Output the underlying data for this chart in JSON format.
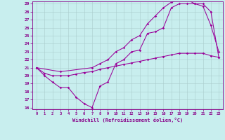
{
  "xlabel": "Windchill (Refroidissement éolien,°C)",
  "bg_color": "#c8eeee",
  "grid_color": "#aacccc",
  "line_color": "#990099",
  "xmin": 0,
  "xmax": 23,
  "ymin": 16,
  "ymax": 29,
  "line1_x": [
    0,
    1,
    2,
    3,
    4,
    5,
    6,
    7,
    8,
    9,
    10,
    11,
    12,
    13,
    14,
    15,
    16,
    17,
    18,
    19,
    20,
    21,
    22,
    23
  ],
  "line1_y": [
    21.0,
    20.0,
    19.2,
    18.5,
    18.5,
    17.3,
    16.5,
    16.0,
    18.7,
    19.2,
    21.5,
    22.0,
    23.0,
    23.2,
    25.3,
    25.5,
    26.0,
    28.5,
    29.0,
    29.0,
    29.0,
    28.7,
    26.3,
    23.0
  ],
  "line2_x": [
    0,
    3,
    7,
    8,
    9,
    10,
    11,
    12,
    13,
    14,
    15,
    16,
    17,
    18,
    19,
    20,
    21,
    22,
    23
  ],
  "line2_y": [
    21.0,
    20.5,
    21.0,
    21.5,
    22.0,
    23.0,
    23.5,
    24.5,
    25.0,
    26.5,
    27.5,
    28.5,
    29.2,
    29.5,
    29.5,
    29.0,
    29.0,
    28.0,
    22.3
  ],
  "line3_x": [
    0,
    1,
    2,
    3,
    4,
    5,
    6,
    7,
    8,
    9,
    10,
    11,
    12,
    13,
    14,
    15,
    16,
    17,
    18,
    19,
    20,
    21,
    22,
    23
  ],
  "line3_y": [
    21.0,
    20.3,
    20.0,
    20.0,
    20.0,
    20.2,
    20.4,
    20.5,
    20.8,
    21.0,
    21.2,
    21.4,
    21.6,
    21.8,
    22.0,
    22.2,
    22.4,
    22.6,
    22.8,
    22.8,
    22.8,
    22.8,
    22.5,
    22.3
  ]
}
